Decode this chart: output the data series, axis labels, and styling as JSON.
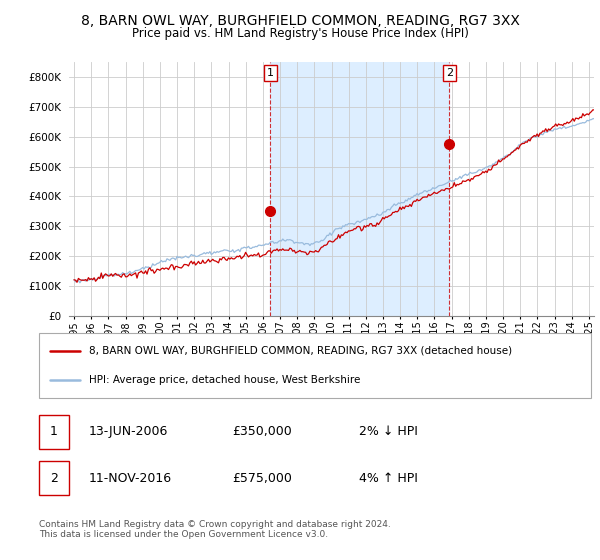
{
  "title": "8, BARN OWL WAY, BURGHFIELD COMMON, READING, RG7 3XX",
  "subtitle": "Price paid vs. HM Land Registry's House Price Index (HPI)",
  "ylabel_ticks": [
    0,
    100000,
    200000,
    300000,
    400000,
    500000,
    600000,
    700000,
    800000
  ],
  "ylim": [
    0,
    850000
  ],
  "xlim_start": 1994.7,
  "xlim_end": 2025.3,
  "line_color_property": "#cc0000",
  "line_color_hpi": "#99bbdd",
  "shade_color": "#ddeeff",
  "vline_color": "#cc0000",
  "purchase1_year": 2006.44,
  "purchase1_price": 350000,
  "purchase2_year": 2016.86,
  "purchase2_price": 575000,
  "legend_line1": "8, BARN OWL WAY, BURGHFIELD COMMON, READING, RG7 3XX (detached house)",
  "legend_line2": "HPI: Average price, detached house, West Berkshire",
  "annotation1_date": "13-JUN-2006",
  "annotation1_price": "£350,000",
  "annotation1_hpi": "2% ↓ HPI",
  "annotation2_date": "11-NOV-2016",
  "annotation2_price": "£575,000",
  "annotation2_hpi": "4% ↑ HPI",
  "footer": "Contains HM Land Registry data © Crown copyright and database right 2024.\nThis data is licensed under the Open Government Licence v3.0.",
  "background_color": "#ffffff",
  "grid_color": "#cccccc"
}
